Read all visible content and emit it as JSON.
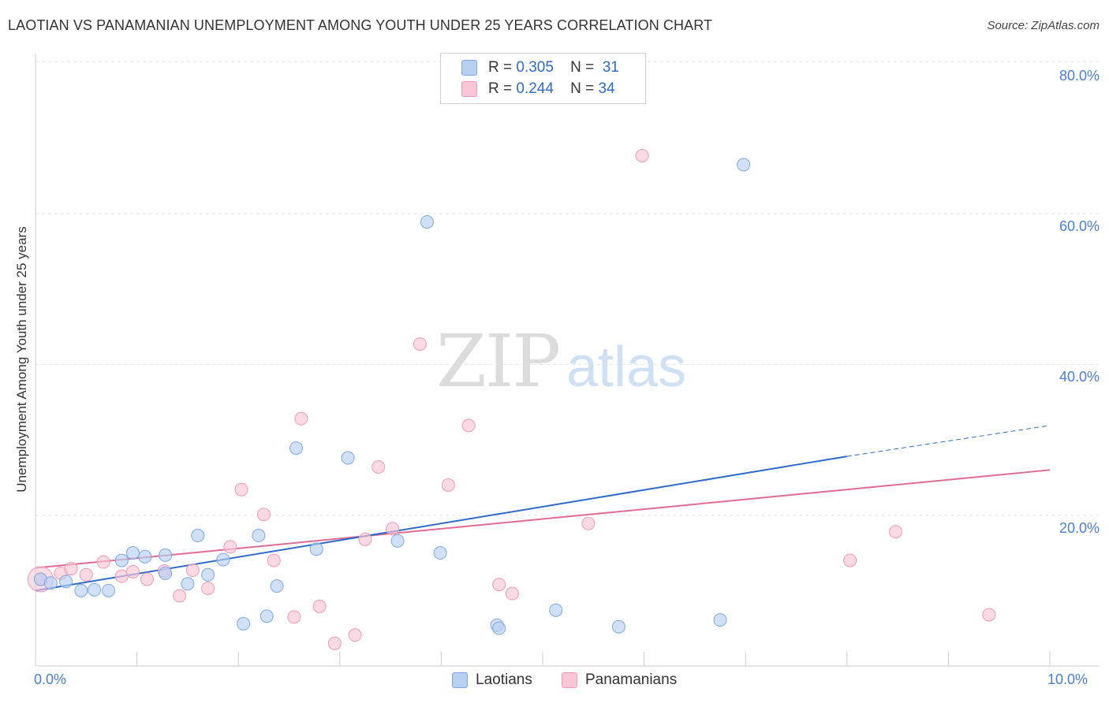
{
  "header": {
    "title": "LAOTIAN VS PANAMANIAN UNEMPLOYMENT AMONG YOUTH UNDER 25 YEARS CORRELATION CHART",
    "source": "Source: ZipAtlas.com"
  },
  "watermark": {
    "zip": "ZIP",
    "atlas": "atlas"
  },
  "legend": {
    "rows": [
      {
        "r_label": "R =",
        "r_value": "0.305",
        "n_label": "N =",
        "n_value": "31"
      },
      {
        "r_label": "R =",
        "r_value": "0.244",
        "n_label": "N =",
        "n_value": "34"
      }
    ]
  },
  "bottom_legend": {
    "laotians": "Laotians",
    "panamanians": "Panamanians"
  },
  "axis": {
    "ylabel": "Unemployment Among Youth under 25 years",
    "yticks": [
      "80.0%",
      "60.0%",
      "40.0%",
      "20.0%"
    ],
    "x_min_label": "0.0%",
    "x_max_label": "10.0%"
  },
  "colors": {
    "laotians_fill": "#b7d0f2",
    "laotians_stroke": "#7fa8e0",
    "laotians_line": "#2f6bc8",
    "panamanians_fill": "#f9c6d6",
    "panamanians_stroke": "#ec9ab5",
    "panamanians_line": "#e06b95",
    "grid": "#e2e2e2",
    "tick_text": "#4a7fd0"
  },
  "chart_data": {
    "type": "scatter",
    "title": "LAOTIAN VS PANAMANIAN UNEMPLOYMENT AMONG YOUTH UNDER 25 YEARS CORRELATION CHART",
    "xlabel": "",
    "ylabel": "Unemployment Among Youth under 25 years",
    "xlim": [
      0,
      10
    ],
    "ylim": [
      0,
      85
    ],
    "x_unit": "%",
    "y_unit": "%",
    "grid": "horizontal dashed",
    "legend_placement": "top-center",
    "series": [
      {
        "name": "Laotians",
        "R": 0.305,
        "N": 31,
        "points": [
          [
            0.05,
            11.5
          ],
          [
            0.15,
            11.0
          ],
          [
            0.3,
            11.2
          ],
          [
            0.45,
            10.0
          ],
          [
            0.58,
            10.1
          ],
          [
            0.72,
            10.0
          ],
          [
            0.85,
            14.0
          ],
          [
            0.96,
            15.0
          ],
          [
            1.08,
            14.5
          ],
          [
            1.28,
            14.7
          ],
          [
            1.28,
            12.3
          ],
          [
            1.5,
            10.9
          ],
          [
            1.6,
            17.3
          ],
          [
            1.7,
            12.1
          ],
          [
            1.85,
            14.1
          ],
          [
            2.05,
            5.6
          ],
          [
            2.2,
            17.3
          ],
          [
            2.28,
            6.6
          ],
          [
            2.38,
            10.6
          ],
          [
            2.57,
            28.9
          ],
          [
            2.77,
            15.5
          ],
          [
            3.08,
            27.6
          ],
          [
            3.57,
            16.6
          ],
          [
            3.86,
            58.9
          ],
          [
            3.99,
            15.0
          ],
          [
            4.55,
            5.4
          ],
          [
            4.57,
            5.0
          ],
          [
            5.13,
            7.4
          ],
          [
            5.75,
            5.2
          ],
          [
            6.75,
            6.1
          ],
          [
            6.98,
            66.5
          ]
        ],
        "trend": {
          "x0": 0.0,
          "y0": 10.0,
          "x1": 8.0,
          "y1": 27.8,
          "dashed_to_x": 10.0,
          "dashed_to_y": 31.9
        }
      },
      {
        "name": "Panamanians",
        "R": 0.244,
        "N": 34,
        "points": [
          [
            0.05,
            11.5
          ],
          [
            0.25,
            12.3
          ],
          [
            0.35,
            12.9
          ],
          [
            0.5,
            12.1
          ],
          [
            0.67,
            13.8
          ],
          [
            0.85,
            11.9
          ],
          [
            0.96,
            12.5
          ],
          [
            1.1,
            11.5
          ],
          [
            1.27,
            12.6
          ],
          [
            1.42,
            9.3
          ],
          [
            1.55,
            12.7
          ],
          [
            1.7,
            10.3
          ],
          [
            1.92,
            15.8
          ],
          [
            2.03,
            23.4
          ],
          [
            2.25,
            20.1
          ],
          [
            2.35,
            14.0
          ],
          [
            2.55,
            6.5
          ],
          [
            2.62,
            32.8
          ],
          [
            2.8,
            7.9
          ],
          [
            2.95,
            3.0
          ],
          [
            3.15,
            4.1
          ],
          [
            3.25,
            16.8
          ],
          [
            3.38,
            26.4
          ],
          [
            3.52,
            18.2
          ],
          [
            3.79,
            42.7
          ],
          [
            4.07,
            24.0
          ],
          [
            4.27,
            31.9
          ],
          [
            4.57,
            10.8
          ],
          [
            4.7,
            9.6
          ],
          [
            5.45,
            18.9
          ],
          [
            5.98,
            67.7
          ],
          [
            8.03,
            14.0
          ],
          [
            8.48,
            17.8
          ],
          [
            9.4,
            6.8
          ]
        ],
        "trend": {
          "x0": 0.0,
          "y0": 13.0,
          "x1": 10.0,
          "y1": 26.0
        }
      }
    ]
  }
}
